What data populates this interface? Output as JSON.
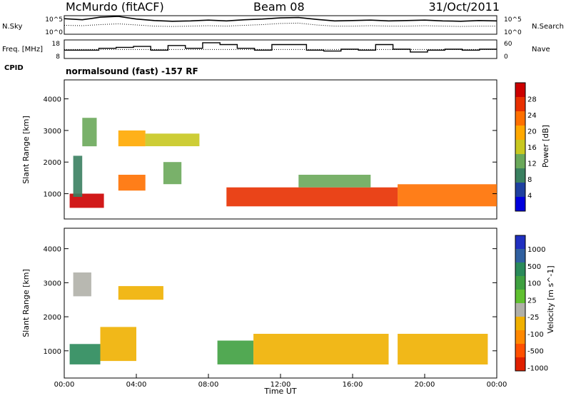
{
  "header": {
    "station": "McMurdo (fitACF)",
    "beam": "Beam 08",
    "date": "31/Oct/2011"
  },
  "chart_data": [
    {
      "type": "line",
      "panel": "sky-noise",
      "ylabel_left": "N.Sky",
      "ylabel_right": "N.Search",
      "left_ticks": [
        "10^5",
        "10^0"
      ],
      "right_ticks": [
        "10^5",
        "10^0"
      ],
      "series": [
        {
          "name": "N.Sky",
          "style": "solid",
          "values": [
            4.2,
            3.9,
            4.6,
            4.8,
            4.1,
            3.7,
            3.5,
            3.6,
            3.8,
            3.6,
            3.9,
            4.1,
            4.4,
            4.5,
            4.0,
            3.6,
            3.7,
            3.8,
            3.6,
            3.7,
            3.8,
            3.6,
            3.5,
            3.7,
            3.6
          ]
        },
        {
          "name": "N.Search",
          "style": "dotted",
          "values": [
            2.4,
            2.3,
            2.6,
            2.8,
            2.5,
            2.2,
            2.1,
            2.2,
            2.3,
            2.2,
            2.4,
            2.6,
            2.9,
            3.0,
            2.5,
            2.2,
            2.2,
            2.3,
            2.2,
            2.2,
            2.3,
            2.2,
            2.1,
            2.2,
            2.2
          ]
        }
      ]
    },
    {
      "type": "line",
      "panel": "frequency-nave",
      "ylabel_left": "Freq. [MHz]",
      "ylabel_right": "Nave",
      "left_ticks": [
        "18",
        "8"
      ],
      "right_ticks": [
        "60",
        "0"
      ],
      "cpid_label": "CPID",
      "series": [
        {
          "name": "Freq.",
          "style": "solid",
          "values": [
            12.5,
            12.5,
            13.5,
            14.0,
            14.5,
            12.5,
            15.0,
            13.5,
            16.5,
            15.5,
            13.5,
            12.5,
            15.5,
            15.5,
            12.5,
            12.0,
            13.0,
            12.5,
            15.5,
            13.0,
            11.5,
            12.5,
            13.0,
            12.5,
            13.0
          ]
        },
        {
          "name": "Nave",
          "style": "dotted",
          "values": [
            29,
            29,
            29,
            29,
            29,
            29,
            29,
            29,
            29,
            29,
            29,
            29,
            29,
            29,
            29,
            29,
            29,
            29,
            29,
            29,
            29,
            29,
            29,
            29,
            29
          ]
        }
      ]
    },
    {
      "type": "heatmap",
      "panel": "power",
      "annotation": "normalsound (fast) -157 RF",
      "ylabel": "Slant Range [km]",
      "y_ticks": [
        "1000",
        "2000",
        "3000",
        "4000"
      ],
      "ylim": [
        200,
        4600
      ],
      "colorbar_label": "Power [dB]",
      "colorbar_ticks": [
        "28",
        "24",
        "20",
        "16",
        "12",
        "8",
        "4"
      ],
      "colorscale": [
        "#0000dd",
        "#1e40a0",
        "#3a8060",
        "#6aa85a",
        "#c8c820",
        "#ffa800",
        "#ff7000",
        "#e83000",
        "#cc0000"
      ],
      "regions": [
        {
          "x": [
            0.3,
            2.2
          ],
          "y": [
            550,
            1000
          ],
          "level": 30
        },
        {
          "x": [
            0.5,
            1.0
          ],
          "y": [
            900,
            2200
          ],
          "level": 10
        },
        {
          "x": [
            1.0,
            1.8
          ],
          "y": [
            2500,
            3400
          ],
          "level": 14
        },
        {
          "x": [
            3.0,
            4.5
          ],
          "y": [
            2500,
            3000
          ],
          "level": 20
        },
        {
          "x": [
            4.5,
            7.5
          ],
          "y": [
            2500,
            2900
          ],
          "level": 16
        },
        {
          "x": [
            3.0,
            4.5
          ],
          "y": [
            1100,
            1600
          ],
          "level": 22
        },
        {
          "x": [
            5.5,
            6.5
          ],
          "y": [
            1300,
            2000
          ],
          "level": 14
        },
        {
          "x": [
            9.0,
            18.5
          ],
          "y": [
            600,
            1200
          ],
          "level": 26
        },
        {
          "x": [
            18.5,
            24.0
          ],
          "y": [
            600,
            1300
          ],
          "level": 24
        },
        {
          "x": [
            13.0,
            17.0
          ],
          "y": [
            1200,
            1600
          ],
          "level": 12
        }
      ]
    },
    {
      "type": "heatmap",
      "panel": "velocity",
      "ylabel": "Slant Range [km]",
      "y_ticks": [
        "1000",
        "2000",
        "3000",
        "4000"
      ],
      "ylim": [
        200,
        4600
      ],
      "colorbar_label": "Velocity [m s^-1]",
      "colorbar_ticks": [
        "1000",
        "500",
        "100",
        "25",
        "-25",
        "-100",
        "-500",
        "-1000"
      ],
      "colorscale": [
        "#2030c0",
        "#3060a0",
        "#2a8a5a",
        "#3fa040",
        "#60c030",
        "#b0b0a8",
        "#f0b000",
        "#ff8800",
        "#ff5000",
        "#e02000"
      ],
      "regions": [
        {
          "x": [
            0.3,
            2.0
          ],
          "y": [
            600,
            1200
          ],
          "level": 500
        },
        {
          "x": [
            2.0,
            4.0
          ],
          "y": [
            700,
            1700
          ],
          "level": -300
        },
        {
          "x": [
            3.0,
            5.5
          ],
          "y": [
            2500,
            2900
          ],
          "level": -300
        },
        {
          "x": [
            8.5,
            10.5
          ],
          "y": [
            600,
            1300
          ],
          "level": 300
        },
        {
          "x": [
            10.5,
            18.0
          ],
          "y": [
            600,
            1500
          ],
          "level": -300
        },
        {
          "x": [
            18.5,
            23.5
          ],
          "y": [
            600,
            1500
          ],
          "level": -300
        },
        {
          "x": [
            0.5,
            1.5
          ],
          "y": [
            2600,
            3300
          ],
          "level": 0
        }
      ],
      "xlabel": "Time UT",
      "x_ticks": [
        "00:00",
        "04:00",
        "08:00",
        "12:00",
        "16:00",
        "20:00",
        "00:00"
      ],
      "xlim": [
        0,
        24
      ]
    }
  ]
}
